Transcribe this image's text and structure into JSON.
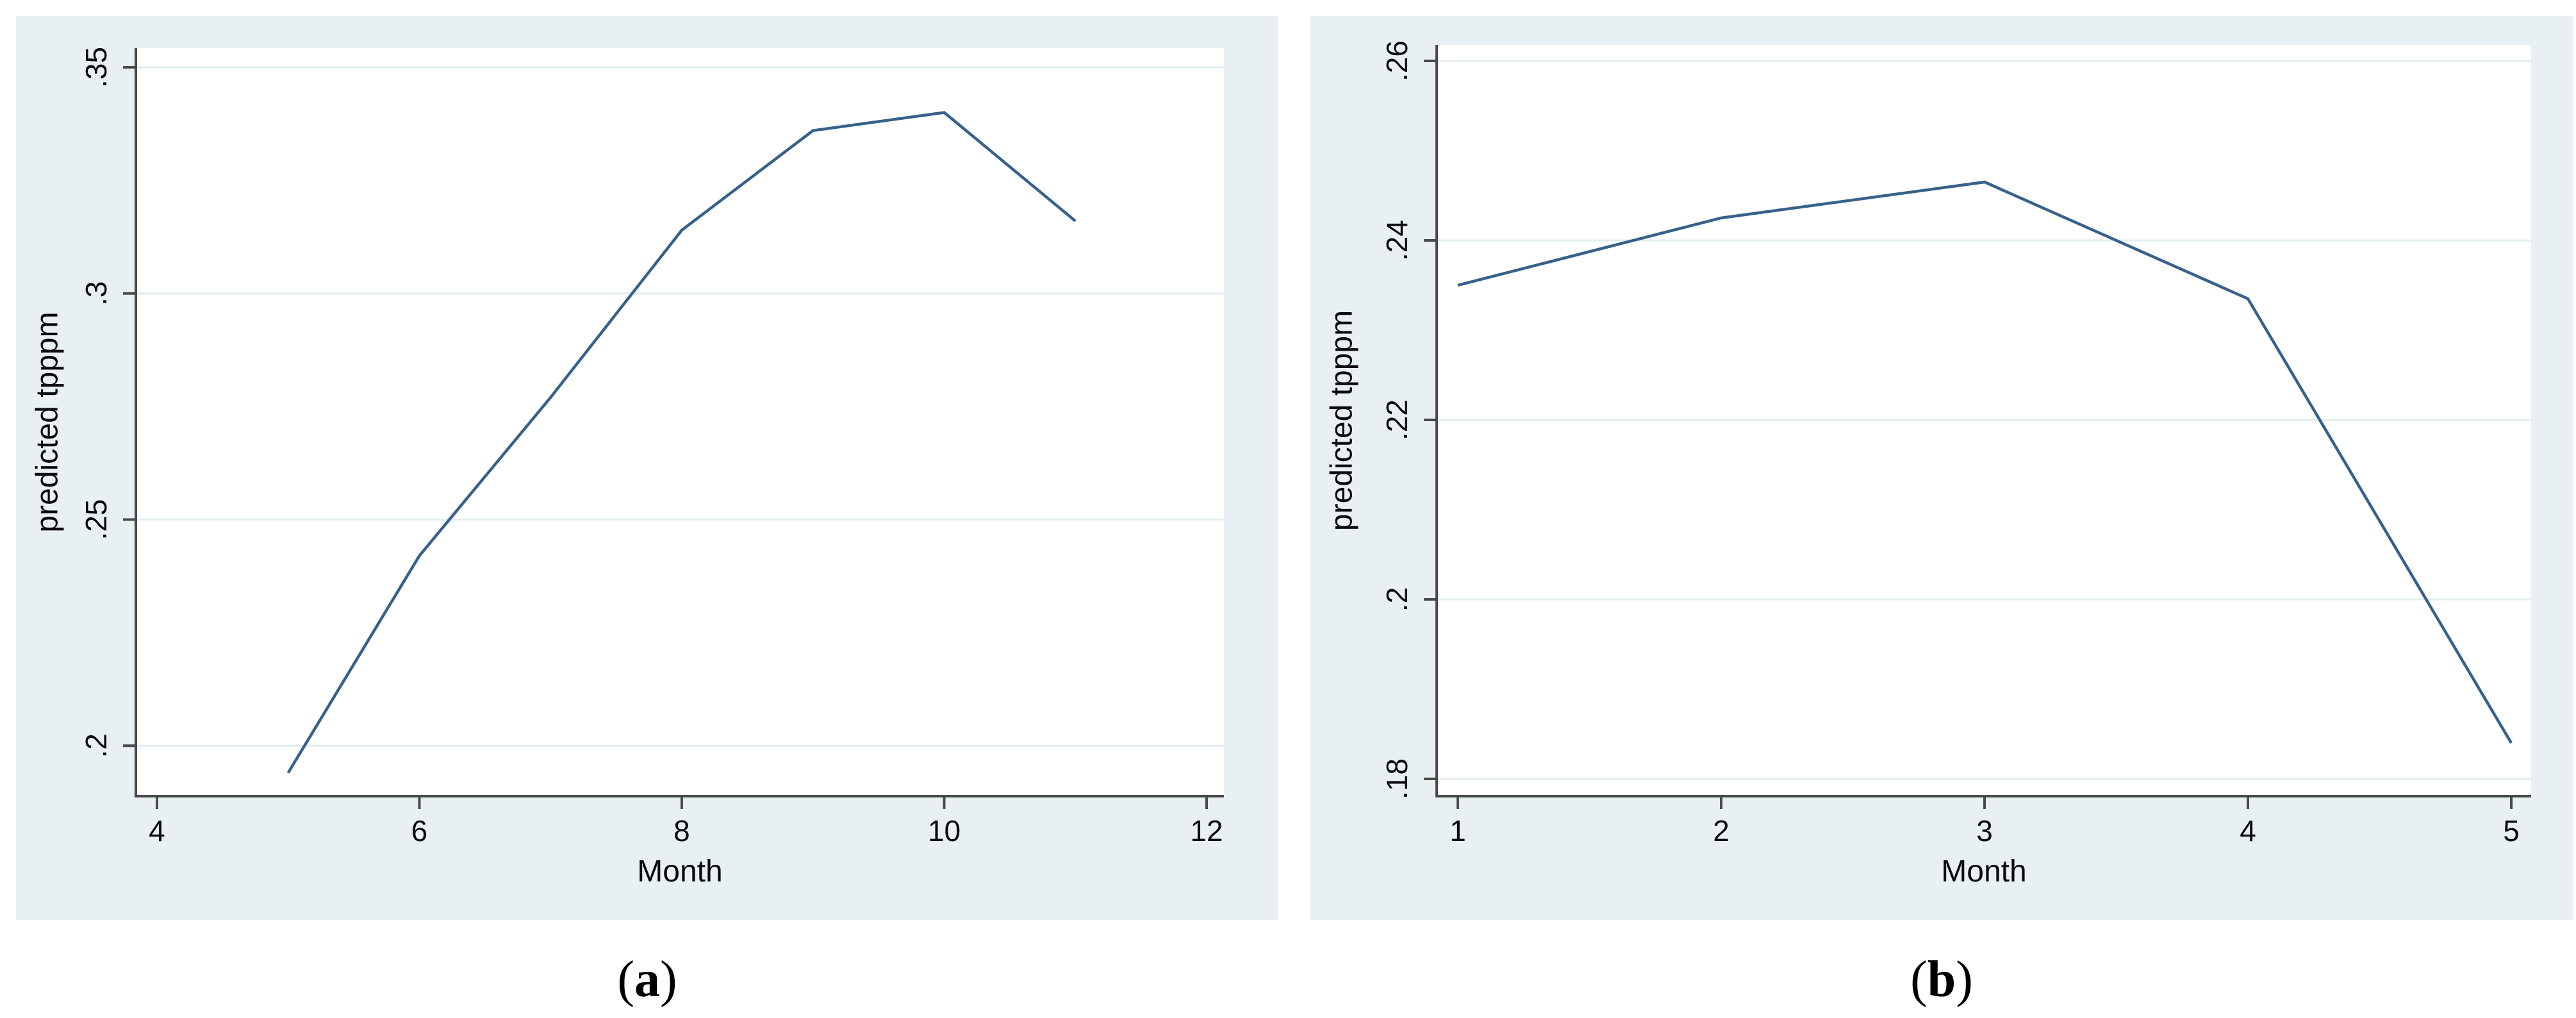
{
  "figure": {
    "captions": {
      "a": {
        "open": "(",
        "letter": "a",
        "close": ")"
      },
      "b": {
        "open": "(",
        "letter": "b",
        "close": ")"
      }
    }
  },
  "colors": {
    "page_bg": "#ffffff",
    "panel_bg": "#e9f0f3",
    "plot_bg": "#ffffff",
    "gridline": "#e2edf0",
    "axis": "#4a4a4a",
    "tick_text": "#0a0a0a",
    "series_line": "#37618b",
    "caption_text": "#000000"
  },
  "chart_data": [
    {
      "type": "line",
      "panel": "a",
      "xlabel": "Month",
      "ylabel": "predicted tpppm",
      "x": [
        5,
        6,
        7,
        8,
        9,
        10,
        11
      ],
      "y": [
        0.194,
        0.242,
        0.277,
        0.314,
        0.336,
        0.34,
        0.316
      ],
      "xticks": {
        "values": [
          4,
          6,
          8,
          10,
          12
        ],
        "labels": [
          "4",
          "6",
          "8",
          "10",
          "12"
        ]
      },
      "yticks": {
        "values": [
          0.2,
          0.25,
          0.3,
          0.35
        ],
        "labels": [
          ".2",
          ".25",
          ".3",
          ".35"
        ]
      },
      "xlim": [
        3.839,
        12.132
      ],
      "ylim": [
        0.18883,
        0.35425
      ],
      "grid": "horizontal",
      "legend": "none"
    },
    {
      "type": "line",
      "panel": "b",
      "xlabel": "Month",
      "ylabel": "predicted tpppm",
      "x": [
        1,
        2,
        3,
        4,
        5
      ],
      "y": [
        0.235,
        0.2425,
        0.2465,
        0.2335,
        0.184
      ],
      "xticks": {
        "values": [
          1,
          2,
          3,
          4,
          5
        ],
        "labels": [
          "1",
          "2",
          "3",
          "4",
          "5"
        ]
      },
      "yticks": {
        "values": [
          0.18,
          0.2,
          0.22,
          0.24,
          0.26
        ],
        "labels": [
          ".18",
          ".2",
          ".22",
          ".24",
          ".26"
        ]
      },
      "xlim": [
        0.9197,
        5.0754
      ],
      "ylim": [
        0.17807,
        0.26179
      ],
      "grid": "horizontal",
      "legend": "none"
    }
  ]
}
